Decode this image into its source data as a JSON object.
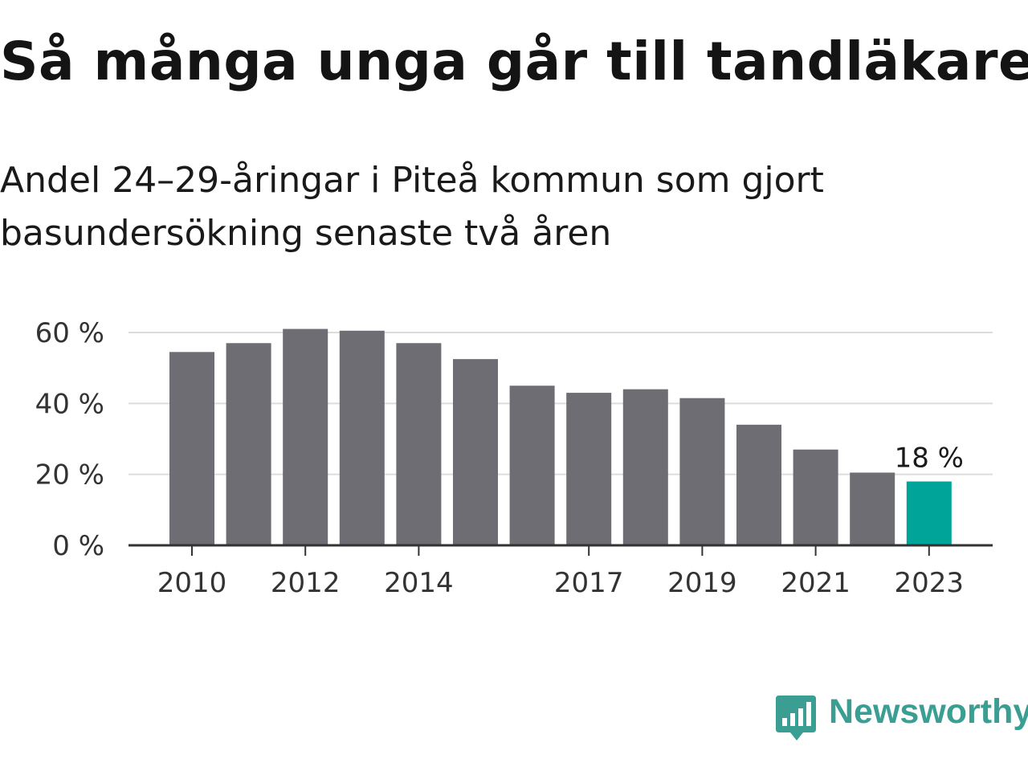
{
  "chart_data": {
    "type": "bar",
    "title": "Så många unga går till tandläkaren",
    "subtitle": "Andel 24–29-åringar i Piteå kommun som gjort basundersökning senaste två åren",
    "categories": [
      "2010",
      "2011",
      "2012",
      "2013",
      "2014",
      "2015",
      "2016",
      "2017",
      "2018",
      "2019",
      "2020",
      "2021",
      "2022",
      "2023"
    ],
    "x_tick_labels": [
      "2010",
      "",
      "2012",
      "",
      "2014",
      "",
      "",
      "2017",
      "",
      "2019",
      "",
      "2021",
      "",
      "2023"
    ],
    "values": [
      54.5,
      57,
      61,
      60.5,
      57,
      52.5,
      45,
      43,
      44,
      41.5,
      34,
      27,
      20.5,
      18
    ],
    "value_label": "18 %",
    "y_ticks": [
      0,
      20,
      40,
      60
    ],
    "y_tick_labels": [
      "0 %",
      "20 %",
      "40 %",
      "60 %"
    ],
    "ylim": [
      0,
      60
    ],
    "grid": true,
    "colors": {
      "bar": "#6e6d73",
      "highlight": "#00a499",
      "grid": "#dcdcdc",
      "axis": "#333333"
    }
  },
  "brand": {
    "name": "Newsworthy",
    "icon": "newsworthy-logo-icon"
  }
}
